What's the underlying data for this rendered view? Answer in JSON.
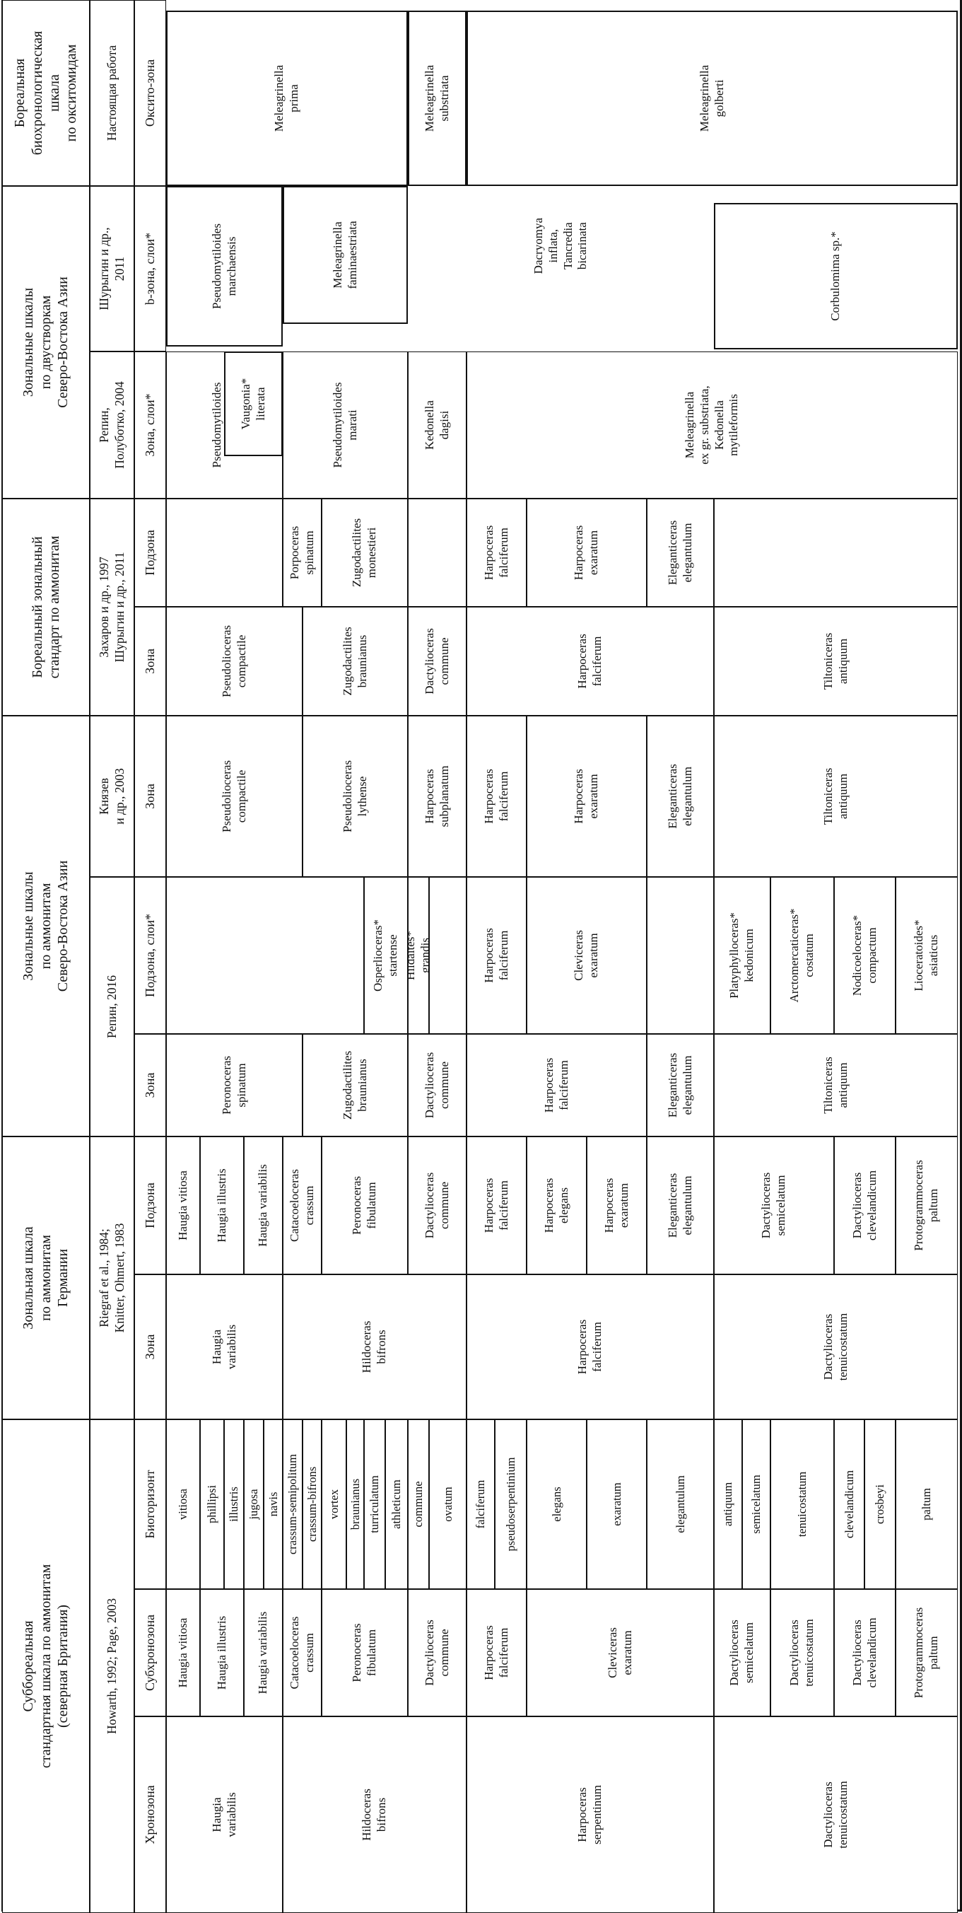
{
  "figure": {
    "description": "Correlation chart of Toarcian ammonite and bivalve zonal scales (rotated table)",
    "orientation": "rotated-90-ccw"
  },
  "groups": [
    {
      "id": "g-british",
      "bands": [
        "H1",
        "H2",
        "H3"
      ],
      "text": "Суббореальная\nстандартная шкала по аммонитам\n(северная Британия)"
    },
    {
      "id": "g-germany",
      "bands": [
        "G1",
        "G2"
      ],
      "text": "Зональная шкала\nпо аммонитам\nГермании"
    },
    {
      "id": "g-ne-asia-ammonites",
      "bands": [
        "E",
        "F1",
        "F2"
      ],
      "text": "Зональные шкалы\nпо аммонитам\nСеверо-Востока Азии"
    },
    {
      "id": "g-boreal-standard",
      "bands": [
        "D1",
        "D2"
      ],
      "text": "Бореальный зональный\nстандарт по аммонитам"
    },
    {
      "id": "g-bivalves",
      "bands": [
        "B",
        "C"
      ],
      "text": "Зональные шкалы\nпо двустворкам\nСеверо-Востока Азии"
    },
    {
      "id": "g-oxytomids",
      "bands": [
        "A"
      ],
      "text": "Бореальная\nбиохронологическая\nшкала\nпо окситомидам"
    }
  ],
  "authors": [
    {
      "id": "a-howarth",
      "bands": [
        "H1",
        "H2",
        "H3"
      ],
      "text": "Howarth, 1992; Page, 2003"
    },
    {
      "id": "a-riegraf",
      "bands": [
        "G1",
        "G2"
      ],
      "text": "Riegraf et al., 1984;\nKnitter, Ohmert, 1983"
    },
    {
      "id": "a-repin2016",
      "bands": [
        "F1",
        "F2"
      ],
      "text": "Репин, 2016"
    },
    {
      "id": "a-knyazev",
      "bands": [
        "E"
      ],
      "text": "Князев\nи др., 2003"
    },
    {
      "id": "a-zakharov",
      "bands": [
        "D1",
        "D2"
      ],
      "text": "Захаров и др., 1997\nШурыгин и др., 2011"
    },
    {
      "id": "a-repin-polubotko",
      "bands": [
        "C"
      ],
      "text": "Репин,\nПолуботко, 2004"
    },
    {
      "id": "a-shurygin",
      "bands": [
        "B"
      ],
      "text": "Шурыгин и др.,\n2011"
    },
    {
      "id": "a-this-work",
      "bands": [
        "A"
      ],
      "text": "Настоящая работа"
    }
  ],
  "band_labels": [
    {
      "band": "H3",
      "text": "Хронозона"
    },
    {
      "band": "H2",
      "text": "Субхронозона"
    },
    {
      "band": "H1",
      "text": "Биогоризонт"
    },
    {
      "band": "G2",
      "text": "Зона"
    },
    {
      "band": "G1",
      "text": "Подзона"
    },
    {
      "band": "F2",
      "text": "Зона"
    },
    {
      "band": "F1",
      "text": "Подзона, слои*"
    },
    {
      "band": "E",
      "text": "Зона"
    },
    {
      "band": "D2",
      "text": "Зона"
    },
    {
      "band": "D1",
      "text": "Подзона"
    },
    {
      "band": "C",
      "text": "Зона, слои*"
    },
    {
      "band": "B",
      "text": "b-зона, слои*"
    },
    {
      "band": "A",
      "text": "Оксито-зона"
    }
  ],
  "cells": {
    "H3": [
      {
        "kind": "cell",
        "span": [
          0,
          5
        ],
        "text": "Haugia\nvariabilis"
      },
      {
        "kind": "cell",
        "span": [
          5,
          13
        ],
        "text": "Hildoceras\nbifrons"
      },
      {
        "kind": "cell",
        "span": [
          13,
          18
        ],
        "text": "Harpoceras\nserpentinum"
      },
      {
        "kind": "cell",
        "span": [
          18,
          24
        ],
        "text": "Dactylioceras\ntenuicostatum"
      }
    ],
    "H2": [
      {
        "kind": "cell",
        "span": [
          0,
          1
        ],
        "text": "Haugia vitiosa"
      },
      {
        "kind": "cell",
        "span": [
          1,
          3
        ],
        "text": "Haugia illustris"
      },
      {
        "kind": "cell",
        "span": [
          3,
          5
        ],
        "text": "Haugia variabilis"
      },
      {
        "kind": "cell",
        "span": [
          5,
          7
        ],
        "text": "Catacoeloceras\ncrassum"
      },
      {
        "kind": "cell",
        "span": [
          7,
          11
        ],
        "text": "Peronoceras\nfibulatum"
      },
      {
        "kind": "cell",
        "span": [
          11,
          13
        ],
        "text": "Dactylioceras\ncommune"
      },
      {
        "kind": "cell",
        "span": [
          13,
          15
        ],
        "text": "Harpoceras\nfalciferum"
      },
      {
        "kind": "cell",
        "span": [
          15,
          18
        ],
        "text": "Cleviceras\nexaratum"
      },
      {
        "kind": "cell",
        "span": [
          18,
          20
        ],
        "text": "Dactylioceras\nsemicelatum"
      },
      {
        "kind": "cell",
        "span": [
          20,
          21
        ],
        "text": "Dactylioceras\ntenuicostatum"
      },
      {
        "kind": "cell",
        "span": [
          21,
          23
        ],
        "text": "Dactylioceras\nclevelandicum"
      },
      {
        "kind": "cell",
        "span": [
          23,
          24
        ],
        "text": "Protogrammoceras\npaltum"
      }
    ],
    "H1": [
      {
        "kind": "bio",
        "span": [
          0,
          1
        ],
        "text": "vitiosa"
      },
      {
        "kind": "bio",
        "span": [
          1,
          2
        ],
        "text": "phillipsi"
      },
      {
        "kind": "bio",
        "span": [
          2,
          3
        ],
        "text": "illustris"
      },
      {
        "kind": "bio",
        "span": [
          3,
          4
        ],
        "text": "jugosa"
      },
      {
        "kind": "bio",
        "span": [
          4,
          5
        ],
        "text": "navis"
      },
      {
        "kind": "bio",
        "span": [
          5,
          6
        ],
        "text": "crassum-semipolitum"
      },
      {
        "kind": "bio",
        "span": [
          6,
          7
        ],
        "text": "crassum-bifrons"
      },
      {
        "kind": "bio",
        "span": [
          7,
          8
        ],
        "text": "vortex"
      },
      {
        "kind": "bio",
        "span": [
          8,
          9
        ],
        "text": "braunianus"
      },
      {
        "kind": "bio",
        "span": [
          9,
          10
        ],
        "text": "turriculatum"
      },
      {
        "kind": "bio",
        "span": [
          10,
          11
        ],
        "text": "athleticum"
      },
      {
        "kind": "bio",
        "span": [
          11,
          12
        ],
        "text": "commune"
      },
      {
        "kind": "bio",
        "span": [
          12,
          13
        ],
        "text": "ovatum"
      },
      {
        "kind": "bio",
        "span": [
          13,
          14
        ],
        "text": "falciferum"
      },
      {
        "kind": "bio",
        "span": [
          14,
          15
        ],
        "text": "pseudoserpentinium"
      },
      {
        "kind": "bio",
        "span": [
          15,
          16
        ],
        "text": "elegans"
      },
      {
        "kind": "bio",
        "span": [
          16,
          17
        ],
        "text": "exaratum"
      },
      {
        "kind": "bio",
        "span": [
          17,
          18
        ],
        "text": "elegantulum"
      },
      {
        "kind": "bio",
        "span": [
          18,
          19
        ],
        "text": "antiquum"
      },
      {
        "kind": "bio",
        "span": [
          19,
          20
        ],
        "text": "semicelatum"
      },
      {
        "kind": "bio",
        "span": [
          20,
          21
        ],
        "text": "tenuicostatum"
      },
      {
        "kind": "bio",
        "span": [
          21,
          22
        ],
        "text": "clevelandicum"
      },
      {
        "kind": "bio",
        "span": [
          22,
          23
        ],
        "text": "crosbeyi"
      },
      {
        "kind": "bio",
        "span": [
          23,
          24
        ],
        "text": "paltum"
      }
    ],
    "G2": [
      {
        "kind": "cell",
        "span": [
          0,
          5
        ],
        "text": "Haugia\nvariabilis"
      },
      {
        "kind": "cell",
        "span": [
          5,
          13
        ],
        "text": "Hildoceras\nbifrons"
      },
      {
        "kind": "cell",
        "span": [
          13,
          18
        ],
        "text": "Harpoceras\nfalciferum"
      },
      {
        "kind": "cell",
        "span": [
          18,
          24
        ],
        "text": "Dactylioceras\ntenuicostatum"
      }
    ],
    "G1": [
      {
        "kind": "cell",
        "span": [
          0,
          1
        ],
        "text": "Haugia vitiosa"
      },
      {
        "kind": "cell",
        "span": [
          1,
          3
        ],
        "text": "Haugia illustris"
      },
      {
        "kind": "cell",
        "span": [
          3,
          5
        ],
        "text": "Haugia variabilis"
      },
      {
        "kind": "cell",
        "span": [
          5,
          7
        ],
        "text": "Catacoeloceras\ncrassum"
      },
      {
        "kind": "cell",
        "span": [
          7,
          11
        ],
        "text": "Peronoceras\nfibulatum"
      },
      {
        "kind": "cell",
        "span": [
          11,
          13
        ],
        "text": "Dactylioceras\ncommune"
      },
      {
        "kind": "cell",
        "span": [
          13,
          15
        ],
        "text": "Harpoceras\nfalciferum"
      },
      {
        "kind": "cell",
        "span": [
          15,
          16
        ],
        "text": "Harpoceras\nelegans"
      },
      {
        "kind": "cell",
        "span": [
          16,
          17
        ],
        "text": "Harpoceras\nexaratum"
      },
      {
        "kind": "cell",
        "span": [
          17,
          18
        ],
        "text": "Eleganticeras\nelegantulum"
      },
      {
        "kind": "cell",
        "span": [
          18,
          21
        ],
        "text": "Dactylioceras\nsemicelatum"
      },
      {
        "kind": "cell",
        "span": [
          21,
          23
        ],
        "text": "Dactylioceras\nclevelandicum"
      },
      {
        "kind": "cell",
        "span": [
          23,
          24
        ],
        "text": "Protogrammoceras\npaltum"
      }
    ],
    "F2": [
      {
        "kind": "cell",
        "span": [
          0,
          6
        ],
        "text": "Peronoceras\nspinatum"
      },
      {
        "kind": "cell",
        "span": [
          6,
          11
        ],
        "text": "Zugodactilites\nbraunianus"
      },
      {
        "kind": "cell",
        "span": [
          11,
          13
        ],
        "text": "Dactylioceras\ncommune"
      },
      {
        "kind": "cell",
        "span": [
          13,
          17
        ],
        "text": "Harpoceras\nfalciferum"
      },
      {
        "kind": "cell",
        "span": [
          17,
          18
        ],
        "text": "Eleganticeras\nelegantulum"
      },
      {
        "kind": "cell",
        "span": [
          18,
          24
        ],
        "text": "Tiltoniceras\nantiquum"
      }
    ],
    "F1": [
      {
        "kind": "empty",
        "span": [
          0,
          9
        ],
        "text": ""
      },
      {
        "kind": "cell",
        "span": [
          9,
          11
        ],
        "text": "Osperlioceras*\nstartense"
      },
      {
        "kind": "cell",
        "span": [
          11,
          12
        ],
        "text": "Hildaites*\ngrandis"
      },
      {
        "kind": "empty",
        "span": [
          12,
          13
        ],
        "text": ""
      },
      {
        "kind": "cell",
        "span": [
          13,
          15
        ],
        "text": "Harpoceras\nfalciferum"
      },
      {
        "kind": "cell",
        "span": [
          15,
          17
        ],
        "text": "Cleviceras\nexaratum"
      },
      {
        "kind": "empty",
        "span": [
          17,
          18
        ],
        "text": ""
      },
      {
        "kind": "cell",
        "span": [
          18,
          20
        ],
        "text": "Platyphylloceras*\nkedonicum"
      },
      {
        "kind": "cell",
        "span": [
          20,
          21
        ],
        "text": "Arctomercaticeras*\ncostatum"
      },
      {
        "kind": "cell",
        "span": [
          21,
          23
        ],
        "text": "Nodicoeloceras*\ncompactum"
      },
      {
        "kind": "cell",
        "span": [
          23,
          24
        ],
        "text": "Lioceratoides*\nasiaticus"
      }
    ],
    "E": [
      {
        "kind": "cell",
        "span": [
          0,
          6
        ],
        "text": "Pseudolioceras\ncompactile"
      },
      {
        "kind": "cell",
        "span": [
          6,
          11
        ],
        "text": "Pseudolioceras\nlythense"
      },
      {
        "kind": "cell",
        "span": [
          11,
          13
        ],
        "text": "Harpoceras\nsubplanatum"
      },
      {
        "kind": "cell",
        "span": [
          13,
          15
        ],
        "text": "Harpoceras\nfalciferum"
      },
      {
        "kind": "cell",
        "span": [
          15,
          17
        ],
        "text": "Harpoceras\nexaratum"
      },
      {
        "kind": "cell",
        "span": [
          17,
          18
        ],
        "text": "Eleganticeras\nelegantulum"
      },
      {
        "kind": "cell",
        "span": [
          18,
          24
        ],
        "text": "Tiltoniceras\nantiquum"
      }
    ],
    "D2": [
      {
        "kind": "cell",
        "span": [
          0,
          6
        ],
        "text": "Pseudolioceras\ncompactile"
      },
      {
        "kind": "cell",
        "span": [
          6,
          11
        ],
        "text": "Zugodactilites\nbraunianus"
      },
      {
        "kind": "cell",
        "span": [
          11,
          13
        ],
        "text": "Dactylioceras\ncommune"
      },
      {
        "kind": "cell",
        "span": [
          13,
          18
        ],
        "text": "Harpoceras\nfalciferum"
      },
      {
        "kind": "cell",
        "span": [
          18,
          24
        ],
        "text": "Tiltoniceras\nantiquum"
      }
    ],
    "D1": [
      {
        "kind": "empty",
        "span": [
          0,
          5
        ],
        "text": ""
      },
      {
        "kind": "cell",
        "span": [
          5,
          7
        ],
        "text": "Porpoceras\nspinatum"
      },
      {
        "kind": "cell",
        "span": [
          7,
          11
        ],
        "text": "Zugodactilites\nmonestieri"
      },
      {
        "kind": "empty",
        "span": [
          11,
          13
        ],
        "text": ""
      },
      {
        "kind": "cell",
        "span": [
          13,
          15
        ],
        "text": "Harpoceras\nfalciferum"
      },
      {
        "kind": "cell",
        "span": [
          15,
          17
        ],
        "text": "Harpoceras\nexaratum"
      },
      {
        "kind": "cell",
        "span": [
          17,
          18
        ],
        "text": "Eleganticeras\nelegantulum"
      },
      {
        "kind": "empty",
        "span": [
          18,
          24
        ],
        "text": ""
      }
    ],
    "C": [
      {
        "kind": "cell",
        "span": [
          0,
          5
        ],
        "text": "Pseudomytiloides\nmarchaensis",
        "id": "c-marchaensis"
      },
      {
        "kind": "cell",
        "span": [
          5,
          11
        ],
        "text": "Pseudomytiloides\nmarati"
      },
      {
        "kind": "cell",
        "span": [
          11,
          13
        ],
        "text": "Kedonella\ndagisi"
      },
      {
        "kind": "cell",
        "span": [
          13,
          24
        ],
        "text": "Meleagrinella\nex gr. substriata,\nKedonella\nmytileformis"
      },
      {
        "kind": "box",
        "span": [
          2,
          5
        ],
        "text": "Vaugonia*\nliterata",
        "id": "vaugonia"
      }
    ],
    "B": [
      {
        "kind": "box",
        "span": [
          0,
          5
        ],
        "text": "Pseudomytiloides\nmarchaensis",
        "id": "b-marchaensis"
      },
      {
        "kind": "box",
        "span": [
          5,
          11
        ],
        "text": "Meleagrinella\nfaminaestriata",
        "id": "b-faminaestriata"
      },
      {
        "kind": "floater",
        "span": [
          11,
          18
        ],
        "text": "Dacryomya\ninflata,\nTancredia\nbicarinata",
        "id": "b-dacryomya"
      },
      {
        "kind": "box",
        "span": [
          18,
          24
        ],
        "text": "Corbulomima sp.*",
        "id": "b-corbulomima"
      }
    ],
    "A": [
      {
        "kind": "box",
        "span": [
          0,
          11
        ],
        "text": "Meleagrinella\nprima",
        "id": "a-prima"
      },
      {
        "kind": "box",
        "span": [
          11,
          13
        ],
        "text": "Meleagrinella\nsubstriata",
        "id": "a-substriata"
      },
      {
        "kind": "box",
        "span": [
          13,
          24
        ],
        "text": "Meleagrinella\ngolberti",
        "id": "a-golberti"
      }
    ]
  }
}
